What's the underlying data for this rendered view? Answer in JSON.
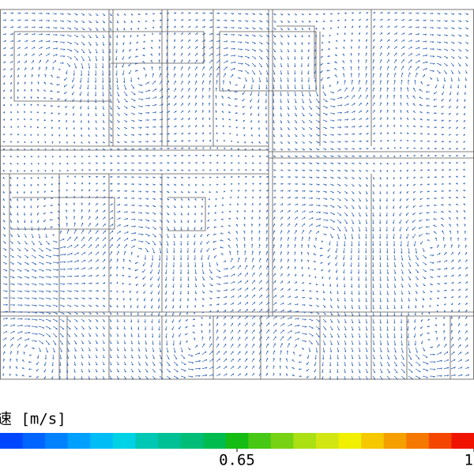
{
  "chart_data": {
    "type": "colorbar",
    "title": "速 [m/s]",
    "xlim": [
      0.3,
      1.0
    ],
    "xticks": [
      0.65,
      1
    ],
    "colors": [
      "#0046ff",
      "#0064ff",
      "#0082ff",
      "#00a0ff",
      "#00bef5",
      "#00d2e6",
      "#00c8b4",
      "#00c096",
      "#00be78",
      "#00bc50",
      "#14bc14",
      "#46c814",
      "#78d214",
      "#aae014",
      "#d2e614",
      "#f0f000",
      "#f5c800",
      "#f5a000",
      "#f57800",
      "#f54600",
      "#f01400"
    ]
  }
}
